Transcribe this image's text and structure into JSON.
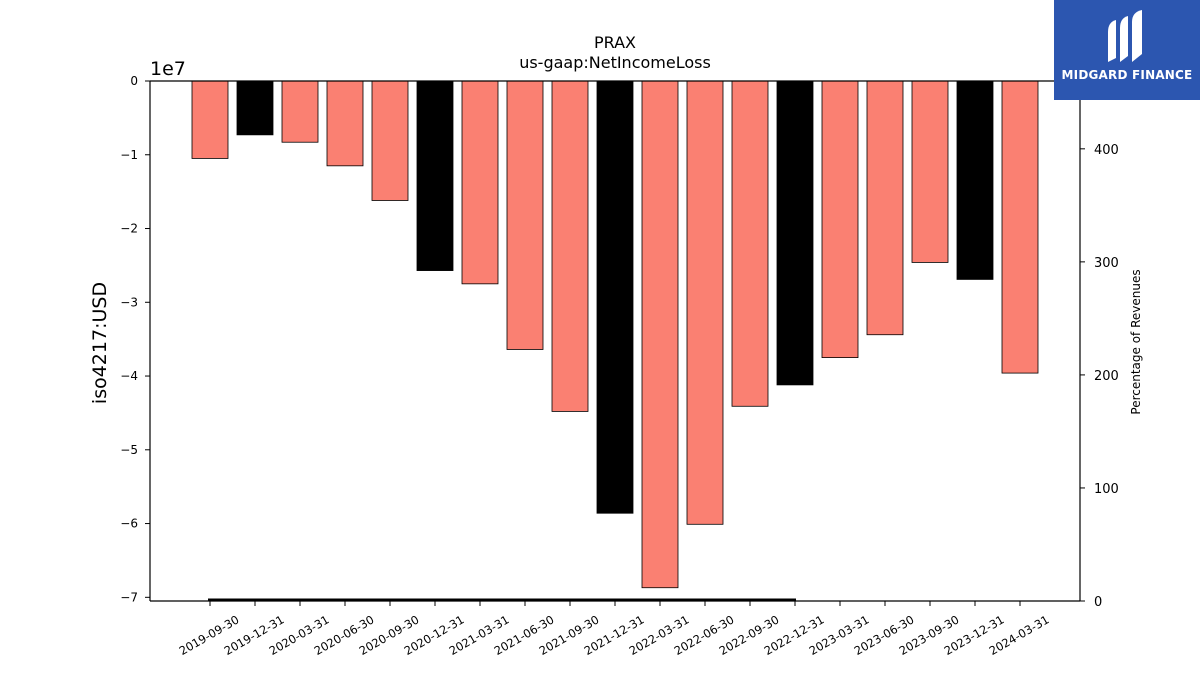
{
  "chart_data": {
    "type": "bar",
    "title": "PRAX",
    "subtitle": "us-gaap:NetIncomeLoss",
    "ylabel": "iso4217:USD",
    "y2label": "Percentage of Revenues",
    "offset_label": "1e7",
    "ylim": [
      -70500000,
      0
    ],
    "y2lim": [
      0,
      460
    ],
    "yticks": [
      0,
      -1,
      -2,
      -3,
      -4,
      -5,
      -6,
      -7
    ],
    "yticklabels": [
      "0",
      "−1",
      "−2",
      "−3",
      "−4",
      "−5",
      "−6",
      "−7"
    ],
    "y2ticks": [
      0,
      100,
      200,
      300,
      400
    ],
    "categories": [
      "2019-09-30",
      "2019-12-31",
      "2020-03-31",
      "2020-06-30",
      "2020-09-30",
      "2020-12-31",
      "2021-03-31",
      "2021-06-30",
      "2021-09-30",
      "2021-12-31",
      "2022-03-31",
      "2022-06-30",
      "2022-09-30",
      "2022-12-31",
      "2023-03-31",
      "2023-06-30",
      "2023-09-30",
      "2023-12-31",
      "2024-03-31"
    ],
    "values": [
      -10500000,
      -7300000,
      -8300000,
      -11500000,
      -16200000,
      -25700000,
      -27500000,
      -36400000,
      -44800000,
      -58600000,
      -68700000,
      -60100000,
      -44100000,
      -41200000,
      -37500000,
      -34400000,
      -24600000,
      -26900000,
      -39600000
    ],
    "annual": [
      false,
      true,
      false,
      false,
      false,
      true,
      false,
      false,
      false,
      true,
      false,
      false,
      false,
      true,
      false,
      false,
      false,
      true,
      false
    ],
    "colors": {
      "quarter": "#fa8072",
      "annual": "#000000"
    },
    "grid": false,
    "legend": "none"
  },
  "logo": {
    "text": "MIDGARD FINANCE",
    "background": "#2c56b0"
  }
}
